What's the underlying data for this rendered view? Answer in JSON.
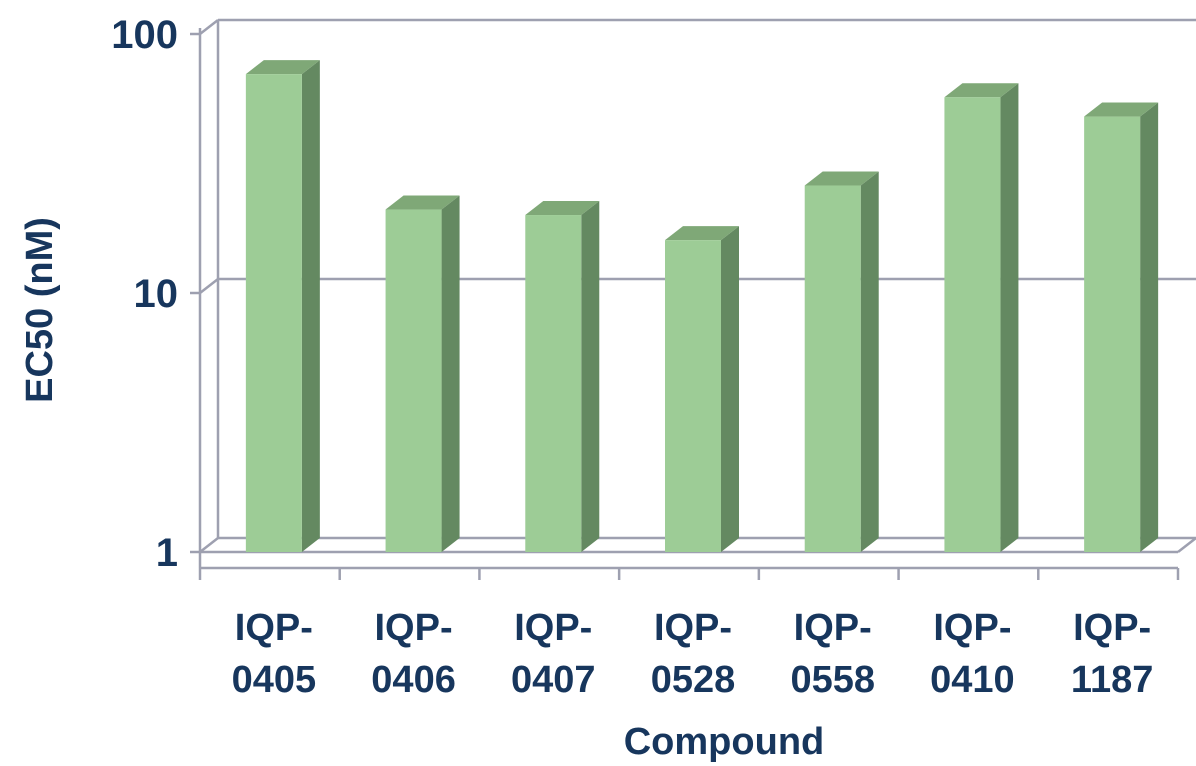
{
  "chart_data": {
    "type": "bar",
    "title": "",
    "xlabel": "Compound",
    "ylabel": "EC50 (nM)",
    "yscale": "log",
    "ylim": [
      1,
      100
    ],
    "yticks": [
      1,
      10,
      100
    ],
    "ytick_labels": [
      "1",
      "10",
      "100"
    ],
    "grid": true,
    "categories": [
      [
        "IQP-",
        "0405"
      ],
      [
        "IQP-",
        "0406"
      ],
      [
        "IQP-",
        "0407"
      ],
      [
        "IQP-",
        "0528"
      ],
      [
        "IQP-",
        "0558"
      ],
      [
        "IQP-",
        "0410"
      ],
      [
        "IQP-",
        "1187"
      ]
    ],
    "values": [
      70,
      21,
      20,
      16,
      26,
      57,
      48
    ],
    "colors": {
      "bar_front": "#9dcc96",
      "bar_top": "#7fa877",
      "bar_side": "#648961",
      "grid": "#9ea0b0",
      "text": "#17365d"
    }
  }
}
